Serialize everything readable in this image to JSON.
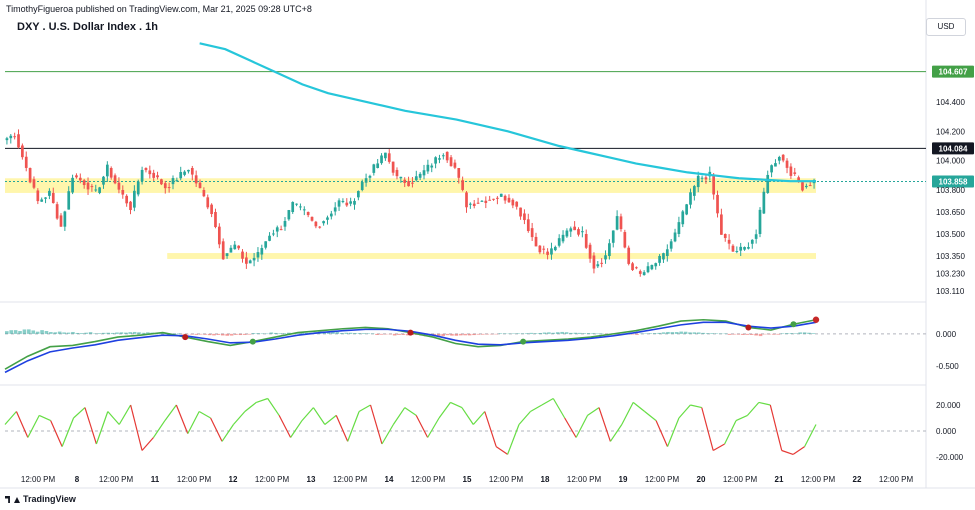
{
  "header": {
    "publisher": "TimothyFigueroa published on TradingView.com, Mar 21, 2025 09:28 UTC+8"
  },
  "title": "DXY . U.S. Dollar Index . 1h",
  "currency_button": "USD",
  "brand": "TradingView",
  "colors": {
    "up": "#26a69a",
    "down": "#ef5350",
    "ma": "#26c6da",
    "zone": "#fff59d",
    "osc_up": "#66dd44",
    "osc_down": "#e53935",
    "hist_up": "#26a69a",
    "hist_down": "#ef5350"
  },
  "chart_data": [
    {
      "type": "candlestick",
      "title": "DXY . U.S. Dollar Index . 1h",
      "y_ticks": [
        "104.400",
        "104.200",
        "104.000",
        "103.800",
        "103.650",
        "103.500",
        "103.350",
        "103.230",
        "103.110"
      ],
      "ylim": [
        103.05,
        104.85
      ],
      "price_labels": [
        {
          "value": 104.607,
          "label": "104.607",
          "color": "#43a047"
        },
        {
          "value": 104.084,
          "label": "104.084",
          "color": "#131722"
        },
        {
          "value": 103.858,
          "label": "103.858",
          "color": "#26a69a"
        }
      ],
      "zones": [
        {
          "from_x": 0.0,
          "to_x": 1.0,
          "low": 103.78,
          "high": 103.88
        },
        {
          "from_x": 0.2,
          "to_x": 1.0,
          "low": 103.33,
          "high": 103.37
        }
      ],
      "x_ticks": [
        "12:00 PM",
        "8",
        "12:00 PM",
        "11",
        "12:00 PM",
        "12",
        "12:00 PM",
        "13",
        "12:00 PM",
        "14",
        "12:00 PM",
        "15",
        "12:00 PM",
        "18",
        "12:00 PM",
        "19",
        "12:00 PM",
        "20",
        "12:00 PM",
        "21",
        "12:00 PM",
        "22",
        "12:00 PM"
      ],
      "close_path": [
        104.14,
        104.18,
        103.95,
        103.72,
        103.78,
        103.55,
        103.9,
        103.85,
        103.78,
        103.95,
        103.8,
        103.68,
        103.95,
        103.9,
        103.82,
        103.88,
        103.95,
        103.8,
        103.65,
        103.35,
        103.42,
        103.3,
        103.36,
        103.5,
        103.55,
        103.7,
        103.65,
        103.55,
        103.62,
        103.72,
        103.7,
        103.85,
        103.95,
        104.05,
        103.88,
        103.85,
        103.9,
        103.98,
        104.06,
        103.95,
        103.7,
        103.72,
        103.74,
        103.76,
        103.72,
        103.6,
        103.42,
        103.36,
        103.45,
        103.55,
        103.5,
        103.28,
        103.35,
        103.62,
        103.3,
        103.22,
        103.28,
        103.35,
        103.5,
        103.7,
        103.88,
        103.9,
        103.5,
        103.38,
        103.4,
        103.5,
        103.92,
        104.04,
        103.92,
        103.82,
        103.86
      ],
      "ma_path": [
        104.8,
        104.76,
        104.68,
        104.6,
        104.52,
        104.46,
        104.42,
        104.38,
        104.34,
        104.31,
        104.28,
        104.24,
        104.2,
        104.15,
        104.1,
        104.06,
        104.02,
        103.98,
        103.95,
        103.92,
        103.9,
        103.88,
        103.87,
        103.86,
        103.86
      ],
      "series": [
        {
          "name": "",
          "values": []
        }
      ]
    },
    {
      "type": "line",
      "title": "",
      "y_ticks": [
        "0.000",
        "-0.500"
      ],
      "ylim": [
        -0.75,
        0.45
      ],
      "series": [
        {
          "name": "",
          "color": "#43a047",
          "values": [
            -0.55,
            -0.35,
            -0.2,
            -0.18,
            -0.12,
            -0.05,
            -0.02,
            0.02,
            -0.05,
            -0.12,
            -0.18,
            -0.12,
            -0.05,
            0.02,
            0.05,
            0.08,
            0.1,
            0.08,
            0.02,
            -0.05,
            -0.15,
            -0.2,
            -0.18,
            -0.12,
            -0.1,
            -0.08,
            -0.05,
            0.0,
            0.05,
            0.12,
            0.2,
            0.22,
            0.2,
            0.1,
            0.06,
            0.15,
            0.22
          ]
        },
        {
          "name": "",
          "color": "#1e40e0",
          "values": [
            -0.6,
            -0.42,
            -0.28,
            -0.22,
            -0.17,
            -0.1,
            -0.06,
            -0.02,
            -0.03,
            -0.08,
            -0.14,
            -0.13,
            -0.08,
            -0.02,
            0.02,
            0.05,
            0.07,
            0.07,
            0.04,
            -0.02,
            -0.1,
            -0.16,
            -0.17,
            -0.14,
            -0.12,
            -0.1,
            -0.07,
            -0.03,
            0.02,
            0.08,
            0.14,
            0.18,
            0.18,
            0.12,
            0.09,
            0.12,
            0.18
          ]
        }
      ],
      "histogram": [
        0.1,
        0.12,
        0.1,
        0.08,
        0.05,
        0.03,
        0.04,
        0.05,
        0.04,
        0.02,
        -0.03,
        -0.04,
        -0.05,
        -0.03,
        0.02,
        0.04,
        0.05,
        0.06,
        0.05,
        0.03,
        0.02,
        -0.03,
        -0.06,
        -0.07,
        -0.06,
        -0.05,
        -0.04,
        -0.02,
        0.02,
        0.03,
        0.04,
        0.05,
        0.03,
        0.02,
        -0.02,
        -0.03,
        0.02,
        0.05,
        0.06,
        0.04,
        0.02,
        -0.04,
        -0.06,
        -0.02,
        0.02,
        0.04
      ]
    },
    {
      "type": "line",
      "title": "",
      "y_ticks": [
        "20.000",
        "0.000",
        "-20.000"
      ],
      "ylim": [
        -30,
        30
      ],
      "series": [
        {
          "name": "",
          "values": [
            5,
            15,
            -5,
            12,
            8,
            -12,
            10,
            18,
            -10,
            15,
            5,
            20,
            -15,
            -5,
            8,
            20,
            -2,
            15,
            10,
            -8,
            5,
            15,
            22,
            25,
            12,
            -5,
            8,
            18,
            5,
            12,
            -8,
            15,
            20,
            -10,
            5,
            18,
            12,
            -5,
            10,
            22,
            18,
            5,
            15,
            -12,
            -18,
            5,
            15,
            20,
            25,
            10,
            -5,
            12,
            18,
            -8,
            5,
            22,
            15,
            8,
            -12,
            10,
            20,
            18,
            -15,
            -10,
            8,
            12,
            22,
            20,
            -15,
            -18,
            -12,
            5
          ]
        }
      ]
    }
  ]
}
